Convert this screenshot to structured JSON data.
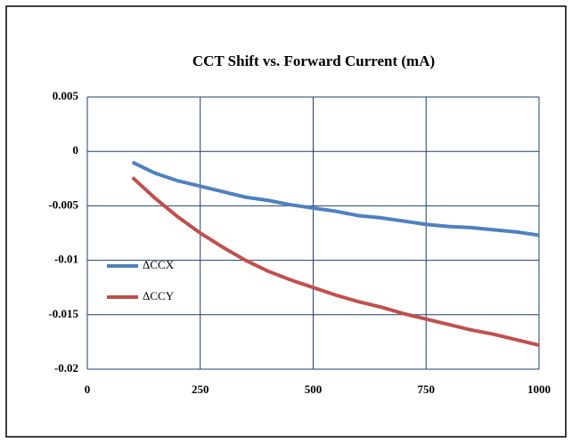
{
  "chart_data": {
    "type": "line",
    "title": "CCT Shift vs. Forward Current (mA)",
    "x": [
      100,
      150,
      200,
      250,
      300,
      350,
      400,
      450,
      500,
      550,
      600,
      650,
      700,
      750,
      800,
      850,
      900,
      950,
      1000
    ],
    "series": [
      {
        "name": "ΔCCX",
        "color": "#4f81bd",
        "values": [
          -0.001,
          -0.002,
          -0.0027,
          -0.0032,
          -0.0037,
          -0.0042,
          -0.0045,
          -0.0049,
          -0.0052,
          -0.0055,
          -0.0059,
          -0.0061,
          -0.0064,
          -0.0067,
          -0.0069,
          -0.007,
          -0.0072,
          -0.0074,
          -0.0077
        ]
      },
      {
        "name": "ΔCCY",
        "color": "#c0504d",
        "values": [
          -0.0024,
          -0.0043,
          -0.006,
          -0.0075,
          -0.0088,
          -0.01,
          -0.011,
          -0.0118,
          -0.0125,
          -0.0132,
          -0.0138,
          -0.0143,
          -0.0149,
          -0.0154,
          -0.0159,
          -0.0164,
          -0.0168,
          -0.0173,
          -0.0178
        ]
      }
    ],
    "xlim": [
      0,
      1000
    ],
    "xticks": [
      0,
      250,
      500,
      750,
      1000
    ],
    "ylim": [
      -0.02,
      0.005
    ],
    "yticks": [
      0.005,
      0,
      -0.005,
      -0.01,
      -0.015,
      -0.02
    ],
    "grid": true,
    "legend": "left"
  }
}
